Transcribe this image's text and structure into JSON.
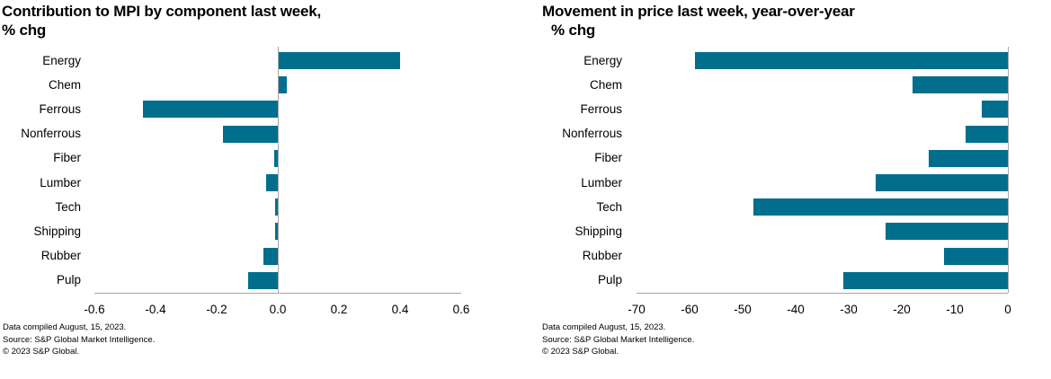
{
  "colors": {
    "bar": "#006E8C",
    "axis": "#A6A6A6",
    "text": "#000000"
  },
  "footer": {
    "lines": [
      "Data compiled August, 15, 2023.",
      "Source: S&P Global Market Intelligence.",
      "© 2023 S&P Global."
    ]
  },
  "chart_data": [
    {
      "type": "bar",
      "orientation": "horizontal",
      "title": "Contribution to MPI by component last week,",
      "subtitle": "% chg",
      "categories": [
        "Energy",
        "Chem",
        "Ferrous",
        "Nonferrous",
        "Fiber",
        "Lumber",
        "Tech",
        "Shipping",
        "Rubber",
        "Pulp"
      ],
      "values": [
        0.4,
        0.03,
        -0.44,
        -0.18,
        -0.012,
        -0.037,
        -0.008,
        -0.008,
        -0.046,
        -0.098
      ],
      "xlim": [
        -0.6,
        0.6
      ],
      "tick_labels": [
        "-0.6",
        "-0.4",
        "-0.2",
        "0.0",
        "0.2",
        "0.4",
        "0.6"
      ],
      "xlabel": "",
      "ylabel": "",
      "grid": false,
      "legend": false
    },
    {
      "type": "bar",
      "orientation": "horizontal",
      "title": "Movement in price last week, year-over-year",
      "subtitle": "% chg",
      "categories": [
        "Energy",
        "Chem",
        "Ferrous",
        "Nonferrous",
        "Fiber",
        "Lumber",
        "Tech",
        "Shipping",
        "Rubber",
        "Pulp"
      ],
      "values": [
        -59,
        -18,
        -5,
        -8,
        -15,
        -25,
        -48,
        -23,
        -12,
        -31
      ],
      "xlim": [
        -70,
        0
      ],
      "tick_labels": [
        "-70",
        "-60",
        "-50",
        "-40",
        "-30",
        "-20",
        "-10",
        "0"
      ],
      "xlabel": "",
      "ylabel": "",
      "grid": false,
      "legend": false
    }
  ]
}
